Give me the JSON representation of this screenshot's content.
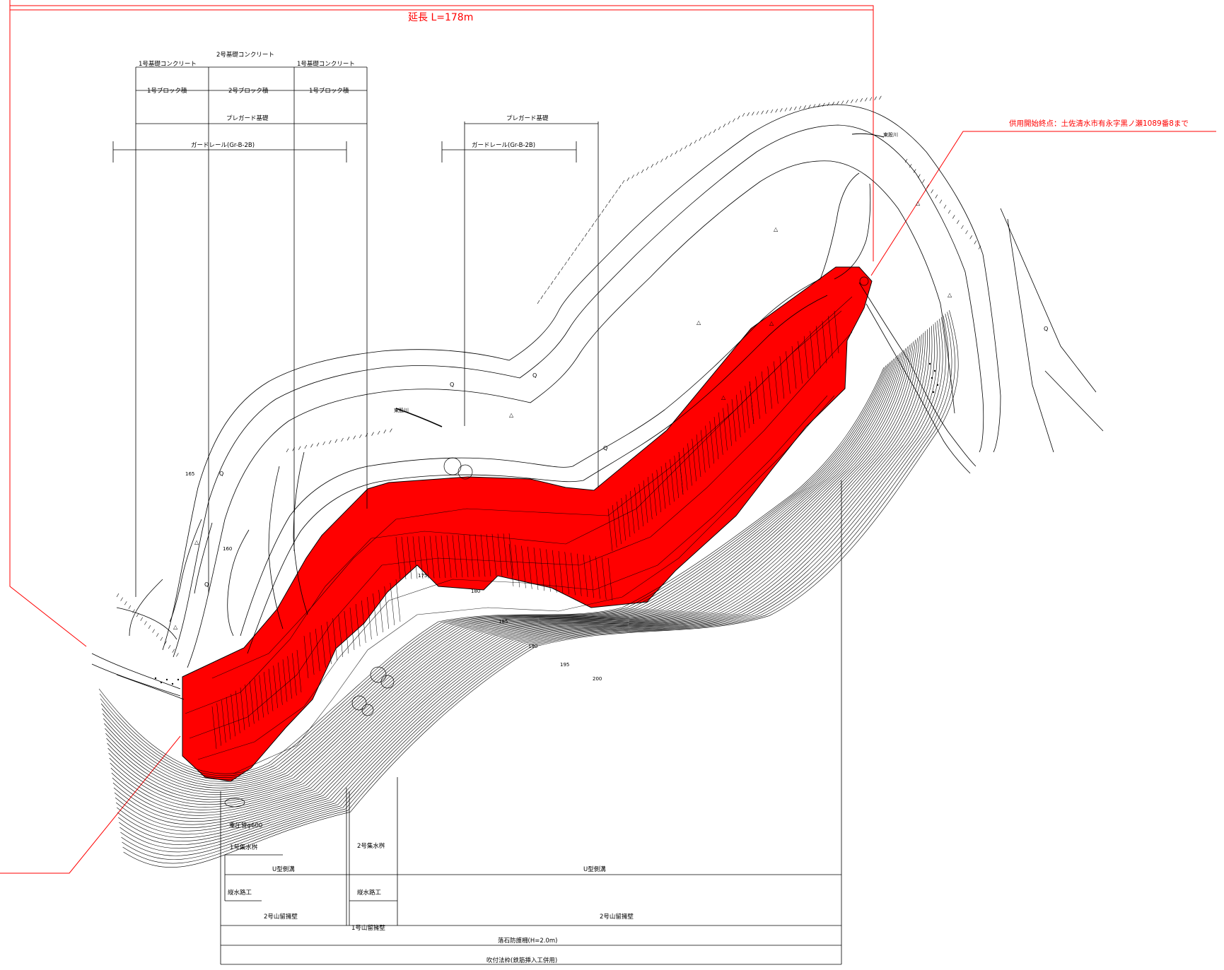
{
  "header": {
    "length_label": "延長 L=178m",
    "end_point_label": "供用開始終点：土佐清水市有永字黒ノ瀬1089番8まで"
  },
  "top_dimensions": {
    "concrete_1a": "1号基礎コンクリート",
    "concrete_2": "2号基礎コンクリート",
    "concrete_1b": "1号基礎コンクリート",
    "block_1a": "1号ブロック積",
    "block_2": "2号ブロック積",
    "block_1b": "1号ブロック積",
    "preguard_left": "プレガード基礎",
    "guardrail_left": "ガードレール(Gr-B-2B)",
    "preguard_right": "プレガード基礎",
    "guardrail_right": "ガードレール(Gr-B-2B)"
  },
  "bottom_dimensions": {
    "pipe": "重圧管φ600",
    "catch_basin_1": "1号集水桝",
    "catch_basin_2": "2号集水桝",
    "u_ditch_left": "U型側溝",
    "u_ditch_right": "U型側溝",
    "drain_left": "縦水路工",
    "drain_right": "縦水路工",
    "retaining_2_left": "2号山留擁壁",
    "retaining_1": "1号山留擁壁",
    "retaining_2_right": "2号山留擁壁",
    "rockfall_fence": "落石防護柵(H=2.0m)",
    "spray_frame": "吹付法枠(鉄筋挿入工併用)"
  },
  "map": {
    "river_label_1": "東股川",
    "river_label_2": "東股川",
    "contours": [
      "165",
      "160",
      "175",
      "180",
      "185",
      "190",
      "195",
      "200"
    ]
  },
  "colors": {
    "highlight": "#ff0000",
    "linework": "#000000",
    "leader": "#ff0000"
  }
}
